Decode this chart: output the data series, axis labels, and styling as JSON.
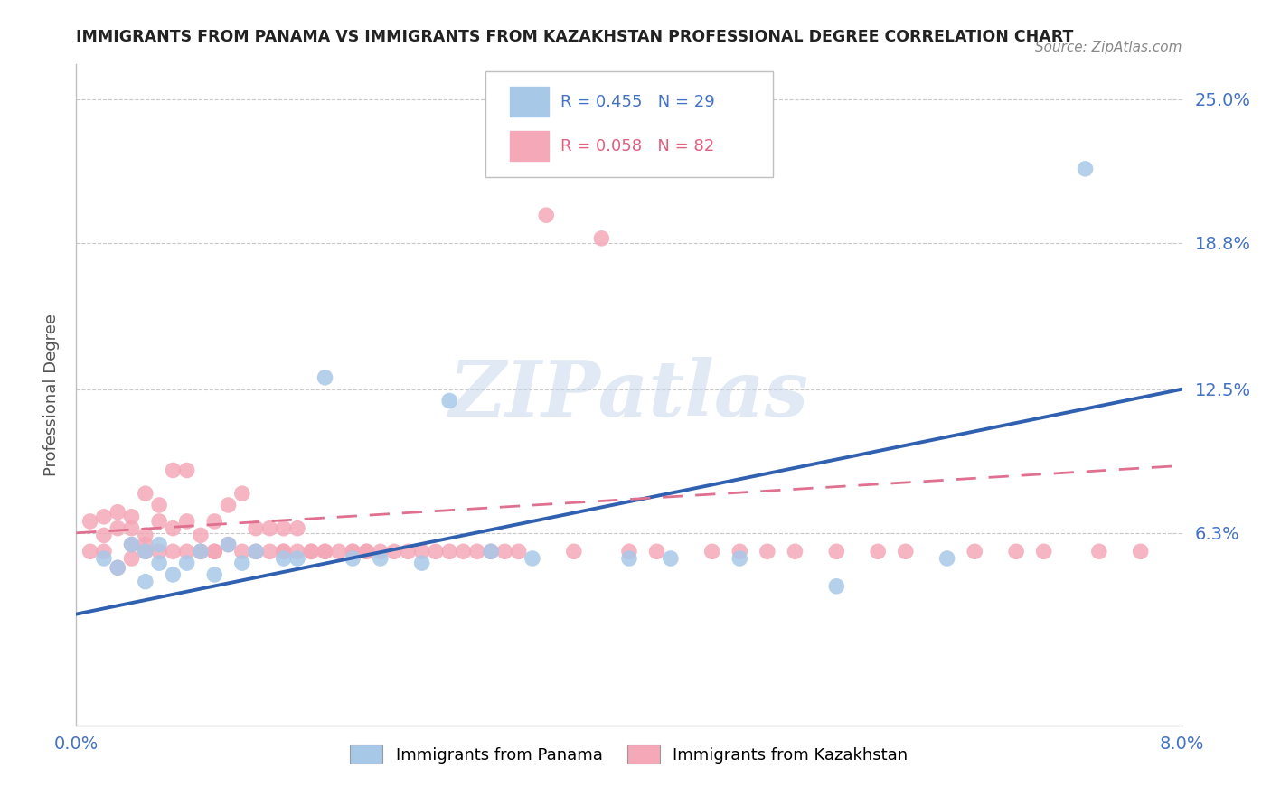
{
  "title": "IMMIGRANTS FROM PANAMA VS IMMIGRANTS FROM KAZAKHSTAN PROFESSIONAL DEGREE CORRELATION CHART",
  "source": "Source: ZipAtlas.com",
  "ylabel": "Professional Degree",
  "x_min": 0.0,
  "x_max": 0.08,
  "y_min": -0.02,
  "y_max": 0.265,
  "y_ticks": [
    0.063,
    0.125,
    0.188,
    0.25
  ],
  "y_tick_labels": [
    "6.3%",
    "12.5%",
    "18.8%",
    "25.0%"
  ],
  "panama_color": "#a8c8e8",
  "kazakhstan_color": "#f4a8b8",
  "panama_line_color": "#3060b0",
  "kazakhstan_line_color": "#e07090",
  "background_color": "#ffffff",
  "panama_x": [
    0.002,
    0.003,
    0.004,
    0.005,
    0.005,
    0.006,
    0.006,
    0.007,
    0.008,
    0.009,
    0.01,
    0.011,
    0.012,
    0.013,
    0.015,
    0.016,
    0.018,
    0.02,
    0.022,
    0.025,
    0.027,
    0.03,
    0.033,
    0.04,
    0.043,
    0.048,
    0.055,
    0.063,
    0.073
  ],
  "panama_y": [
    0.052,
    0.048,
    0.058,
    0.042,
    0.055,
    0.05,
    0.058,
    0.045,
    0.05,
    0.055,
    0.045,
    0.058,
    0.05,
    0.055,
    0.052,
    0.052,
    0.13,
    0.052,
    0.052,
    0.05,
    0.12,
    0.055,
    0.052,
    0.052,
    0.052,
    0.052,
    0.04,
    0.052,
    0.22
  ],
  "kazakhstan_x": [
    0.001,
    0.001,
    0.002,
    0.002,
    0.002,
    0.003,
    0.003,
    0.003,
    0.004,
    0.004,
    0.004,
    0.004,
    0.005,
    0.005,
    0.005,
    0.005,
    0.006,
    0.006,
    0.006,
    0.007,
    0.007,
    0.007,
    0.008,
    0.008,
    0.008,
    0.009,
    0.009,
    0.009,
    0.01,
    0.01,
    0.01,
    0.011,
    0.011,
    0.012,
    0.012,
    0.013,
    0.013,
    0.014,
    0.014,
    0.015,
    0.015,
    0.015,
    0.016,
    0.016,
    0.017,
    0.017,
    0.018,
    0.018,
    0.019,
    0.02,
    0.02,
    0.021,
    0.021,
    0.022,
    0.023,
    0.024,
    0.025,
    0.026,
    0.027,
    0.028,
    0.029,
    0.03,
    0.031,
    0.032,
    0.034,
    0.036,
    0.038,
    0.04,
    0.042,
    0.046,
    0.048,
    0.05,
    0.052,
    0.055,
    0.058,
    0.06,
    0.065,
    0.068,
    0.07,
    0.074,
    0.077,
    0.082
  ],
  "kazakhstan_y": [
    0.068,
    0.055,
    0.07,
    0.055,
    0.062,
    0.048,
    0.065,
    0.072,
    0.052,
    0.065,
    0.07,
    0.058,
    0.055,
    0.062,
    0.058,
    0.08,
    0.055,
    0.068,
    0.075,
    0.055,
    0.065,
    0.09,
    0.055,
    0.068,
    0.09,
    0.055,
    0.062,
    0.055,
    0.055,
    0.068,
    0.055,
    0.058,
    0.075,
    0.055,
    0.08,
    0.055,
    0.065,
    0.065,
    0.055,
    0.055,
    0.055,
    0.065,
    0.055,
    0.065,
    0.055,
    0.055,
    0.055,
    0.055,
    0.055,
    0.055,
    0.055,
    0.055,
    0.055,
    0.055,
    0.055,
    0.055,
    0.055,
    0.055,
    0.055,
    0.055,
    0.055,
    0.055,
    0.055,
    0.055,
    0.2,
    0.055,
    0.19,
    0.055,
    0.055,
    0.055,
    0.055,
    0.055,
    0.055,
    0.055,
    0.055,
    0.055,
    0.055,
    0.055,
    0.055,
    0.055,
    0.055,
    0.055
  ]
}
